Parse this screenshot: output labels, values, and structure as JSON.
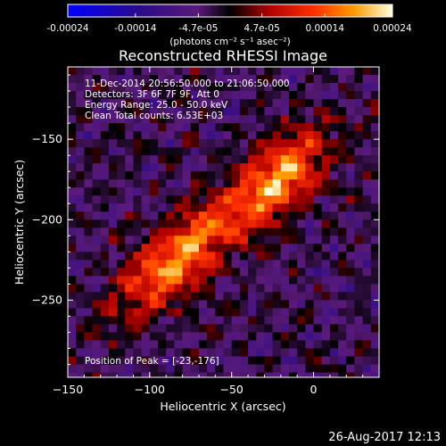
{
  "colorbar": {
    "ticks": [
      "-0.00024",
      "-0.00014",
      "-4.7e-05",
      "4.7e-05",
      "0.00014",
      "0.00024"
    ],
    "tick_values": [
      -0.00024,
      -0.00014,
      -4.7e-05,
      4.7e-05,
      0.00014,
      0.00024
    ],
    "range": [
      -0.00024,
      0.00024
    ],
    "units": "(photons cm⁻² s⁻¹ asec⁻²)"
  },
  "chart_data": {
    "type": "heatmap",
    "title": "Reconstructed RHESSI Image",
    "xlabel": "Heliocentric X (arcsec)",
    "ylabel": "Heliocentric Y (arcsec)",
    "xlim": [
      -150,
      40
    ],
    "ylim": [
      -298,
      -105
    ],
    "xticks": [
      -150,
      -100,
      -50,
      0
    ],
    "xtick_labels": [
      "−150",
      "−100",
      "−50",
      "0"
    ],
    "yticks": [
      -150,
      -200,
      -250
    ],
    "ytick_labels": [
      "−150",
      "−200",
      "−250"
    ],
    "sources": [
      {
        "x": -23,
        "y": -176
      },
      {
        "x": -85,
        "y": -225
      }
    ],
    "annotations": [
      "11-Dec-2014 20:56:50.000 to 21:06:50.000",
      "Detectors: 3F 6F 7F 9F, Att 0",
      "Energy Range: 25.0 - 50.0 keV",
      "Clean     Total counts: 6.53E+03"
    ],
    "peak_label": "Position of Peak = [-23,-176]"
  },
  "footer": {
    "timestamp": "26-Aug-2017 12:13"
  }
}
